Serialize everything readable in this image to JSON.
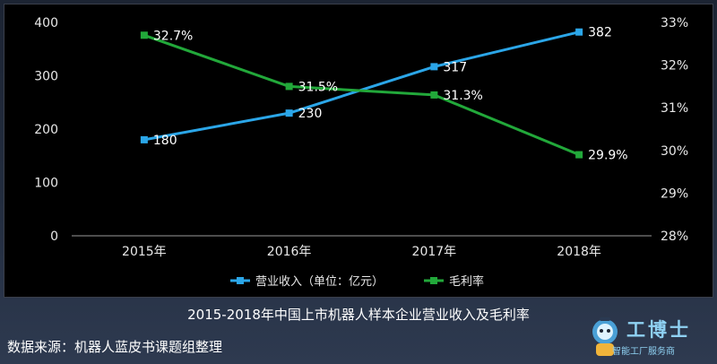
{
  "chart_data": {
    "type": "line",
    "title": "2015-2018年中国上市机器人样本企业营业收入及毛利率",
    "categories": [
      "2015年",
      "2016年",
      "2017年",
      "2018年"
    ],
    "y_left": {
      "ylim": [
        0,
        400
      ],
      "ticks": [
        "0",
        "100",
        "200",
        "300",
        "400"
      ]
    },
    "y_right": {
      "ylim": [
        28,
        33
      ],
      "ticks": [
        "28%",
        "29%",
        "30%",
        "31%",
        "32%",
        "33%"
      ]
    },
    "series": [
      {
        "name": "营业收入（单位：亿元）",
        "axis": "left",
        "color": "#2ba6e8",
        "values": [
          180,
          230,
          317,
          382
        ],
        "labels": [
          "180",
          "230",
          "317",
          "382"
        ]
      },
      {
        "name": "毛利率",
        "axis": "right",
        "color": "#22a83a",
        "values": [
          32.7,
          31.5,
          31.3,
          29.9
        ],
        "labels": [
          "32.7%",
          "31.5%",
          "31.3%",
          "29.9%"
        ]
      }
    ],
    "legend": "bottom",
    "grid": false
  },
  "source": "数据来源：机器人蓝皮书课题组整理",
  "brand": {
    "name": "工博士",
    "slogan": "智能工厂服务商",
    "registered": "®"
  }
}
